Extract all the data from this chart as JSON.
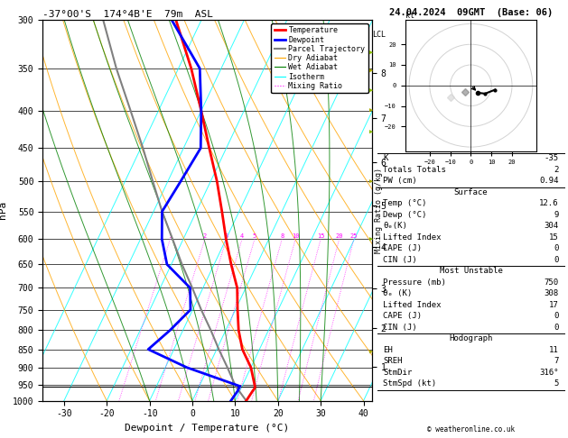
{
  "title_left": "-37°00'S  174°4B'E  79m  ASL",
  "title_right": "24.04.2024  09GMT  (Base: 06)",
  "xlabel": "Dewpoint / Temperature (°C)",
  "ylabel_left": "hPa",
  "pressure_ticks": [
    300,
    350,
    400,
    450,
    500,
    550,
    600,
    650,
    700,
    750,
    800,
    850,
    900,
    950,
    1000
  ],
  "xlim": [
    -35,
    42
  ],
  "lcl_pressure": 955,
  "temperature_profile": {
    "pressure": [
      1000,
      970,
      960,
      955,
      900,
      850,
      800,
      750,
      700,
      650,
      600,
      550,
      500,
      450,
      400,
      350,
      300
    ],
    "temp": [
      12.6,
      13.0,
      13.2,
      13.0,
      10.0,
      6.0,
      3.0,
      0.5,
      -2.0,
      -6.0,
      -10.0,
      -14.0,
      -18.5,
      -24.0,
      -30.0,
      -37.0,
      -46.0
    ]
  },
  "dewpoint_profile": {
    "pressure": [
      1000,
      970,
      960,
      955,
      900,
      850,
      800,
      750,
      700,
      650,
      600,
      550,
      500,
      450,
      400,
      350,
      300
    ],
    "temp": [
      9.0,
      9.5,
      9.5,
      9.5,
      -5.0,
      -16.0,
      -13.0,
      -10.5,
      -13.0,
      -21.0,
      -25.0,
      -28.0,
      -27.0,
      -26.0,
      -30.0,
      -35.0,
      -47.0
    ]
  },
  "parcel_trajectory": {
    "pressure": [
      1000,
      955,
      900,
      850,
      800,
      750,
      700,
      650,
      600,
      550,
      500,
      450,
      400,
      350,
      300
    ],
    "temp": [
      12.6,
      8.5,
      4.5,
      0.5,
      -3.5,
      -8.0,
      -12.5,
      -17.5,
      -22.5,
      -28.0,
      -33.5,
      -39.5,
      -46.5,
      -54.5,
      -63.0
    ]
  },
  "dry_adiabat_thetas": [
    -20,
    -10,
    0,
    10,
    20,
    30,
    40,
    50,
    60,
    70,
    80
  ],
  "wet_adiabat_base_temps": [
    -10,
    0,
    5,
    10,
    15,
    20,
    25,
    30
  ],
  "mixing_ratio_values": [
    1,
    2,
    3,
    4,
    5,
    8,
    10,
    15,
    20,
    25
  ],
  "isotherm_temps": [
    -40,
    -30,
    -20,
    -10,
    0,
    10,
    20,
    30,
    40,
    50
  ],
  "skew_factor": 35,
  "legend_items": [
    {
      "label": "Temperature",
      "color": "red",
      "lw": 2,
      "ls": "-"
    },
    {
      "label": "Dewpoint",
      "color": "blue",
      "lw": 2,
      "ls": "-"
    },
    {
      "label": "Parcel Trajectory",
      "color": "#808080",
      "lw": 1.5,
      "ls": "-"
    },
    {
      "label": "Dry Adiabat",
      "color": "orange",
      "lw": 0.8,
      "ls": "-"
    },
    {
      "label": "Wet Adiabat",
      "color": "green",
      "lw": 0.8,
      "ls": "-"
    },
    {
      "label": "Isotherm",
      "color": "cyan",
      "lw": 0.8,
      "ls": "-"
    },
    {
      "label": "Mixing Ratio",
      "color": "magenta",
      "lw": 0.8,
      "ls": ":"
    }
  ],
  "stats": {
    "K": "-35",
    "Totals Totals": "2",
    "PW (cm)": "0.94",
    "Surf_Temp": "12.6",
    "Surf_Dewp": "9",
    "Surf_theta_e": "304",
    "Surf_LI": "15",
    "Surf_CAPE": "0",
    "Surf_CIN": "0",
    "MU_Pres": "750",
    "MU_theta_e": "308",
    "MU_LI": "17",
    "MU_CAPE": "0",
    "MU_CIN": "0",
    "EH": "11",
    "SREH": "7",
    "StmDir": "316°",
    "StmSpd": "5"
  },
  "hodograph_winds": [
    {
      "spd": 5,
      "dir": 316
    },
    {
      "spd": 8,
      "dir": 300
    },
    {
      "spd": 12,
      "dir": 280
    }
  ],
  "km_ticks": [
    1,
    2,
    3,
    4,
    5,
    6,
    7,
    8
  ],
  "wind_barb_levels": [
    {
      "pressure": 350,
      "spd": 15,
      "dir": 270,
      "color": "#aaaa00"
    },
    {
      "pressure": 500,
      "spd": 20,
      "dir": 260,
      "color": "#88bb00"
    },
    {
      "pressure": 600,
      "spd": 10,
      "dir": 250,
      "color": "#aaaa00"
    },
    {
      "pressure": 700,
      "spd": 8,
      "dir": 240,
      "color": "#88bb00"
    },
    {
      "pressure": 750,
      "spd": 6,
      "dir": 230,
      "color": "#aaaa00"
    },
    {
      "pressure": 800,
      "spd": 5,
      "dir": 220,
      "color": "#88bb00"
    },
    {
      "pressure": 850,
      "spd": 8,
      "dir": 200,
      "color": "#aaaa00"
    },
    {
      "pressure": 900,
      "spd": 10,
      "dir": 190,
      "color": "#88bb00"
    }
  ],
  "bg_color": "#ffffff"
}
